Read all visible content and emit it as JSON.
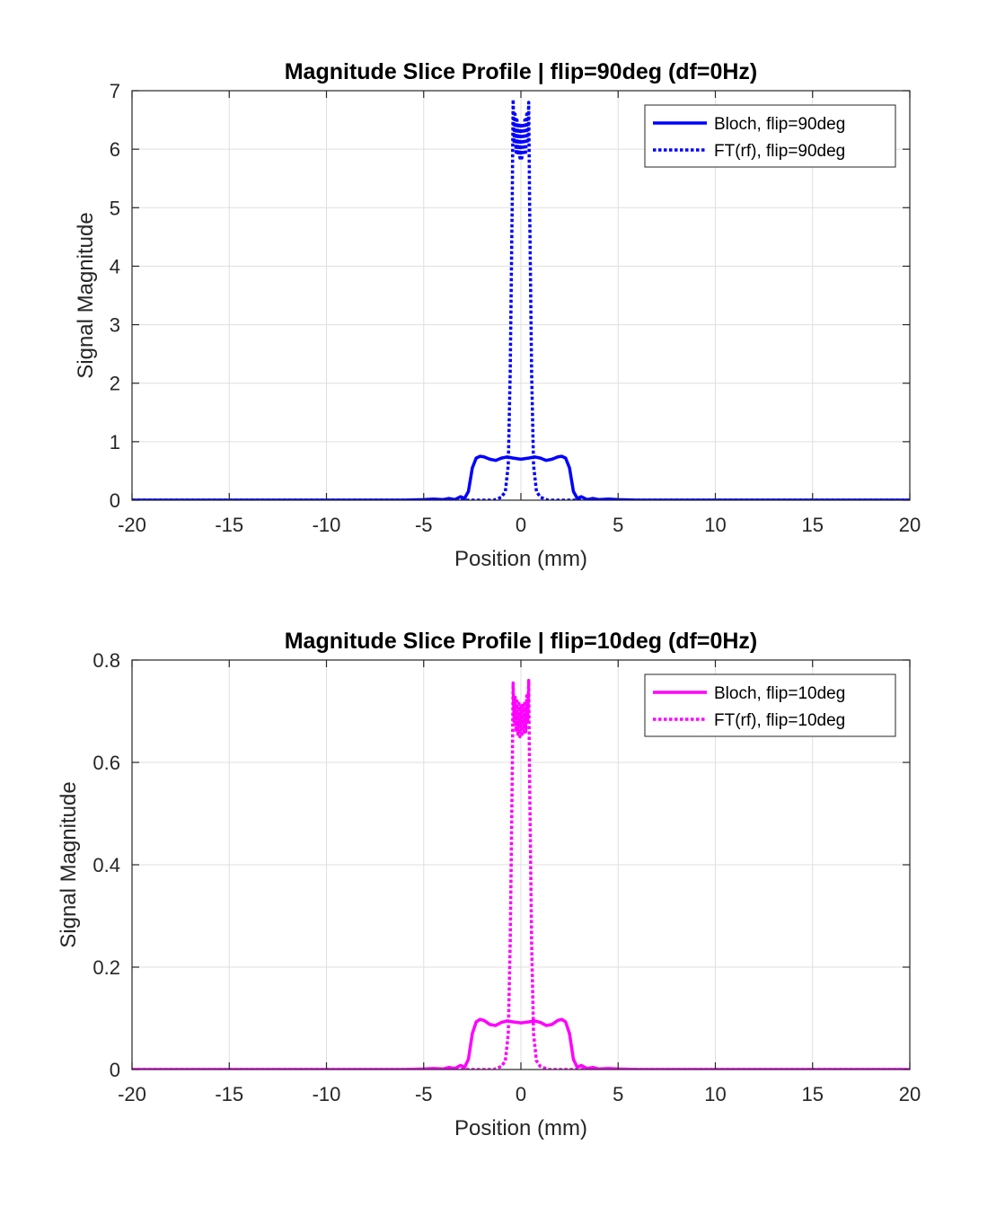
{
  "chart_data": [
    {
      "type": "line",
      "title": "Magnitude Slice Profile | flip=90deg (df=0Hz)",
      "xlabel": "Position (mm)",
      "ylabel": "Signal Magnitude",
      "xlim": [
        -20,
        20
      ],
      "ylim": [
        0,
        7
      ],
      "xticks": [
        -20,
        -15,
        -10,
        -5,
        0,
        5,
        10,
        15,
        20
      ],
      "yticks": [
        0,
        1,
        2,
        3,
        4,
        5,
        6,
        7
      ],
      "xtick_labels": [
        "-20",
        "-15",
        "-10",
        "-5",
        "0",
        "5",
        "10",
        "15",
        "20"
      ],
      "ytick_labels": [
        "0",
        "1",
        "2",
        "3",
        "4",
        "5",
        "6",
        "7"
      ],
      "grid": true,
      "legend_position": "top-right",
      "series": [
        {
          "name": "Bloch, flip=90deg",
          "style": "solid",
          "color": "#0000ff",
          "x": [
            -20,
            -6,
            -5,
            -4.5,
            -4,
            -3.7,
            -3.4,
            -3.1,
            -2.9,
            -2.7,
            -2.5,
            -2.3,
            -2.1,
            -1.9,
            -1.6,
            -1.3,
            -1.0,
            -0.7,
            -0.4,
            -0.2,
            0,
            0.2,
            0.4,
            0.7,
            1.0,
            1.3,
            1.6,
            1.9,
            2.1,
            2.3,
            2.5,
            2.7,
            2.9,
            3.1,
            3.4,
            3.7,
            4,
            4.5,
            5,
            6,
            20
          ],
          "y": [
            0.0,
            0.0,
            0.01,
            0.02,
            0.01,
            0.03,
            0.01,
            0.06,
            0.03,
            0.15,
            0.55,
            0.72,
            0.75,
            0.74,
            0.7,
            0.68,
            0.72,
            0.74,
            0.72,
            0.71,
            0.7,
            0.71,
            0.72,
            0.74,
            0.72,
            0.68,
            0.7,
            0.74,
            0.75,
            0.72,
            0.55,
            0.15,
            0.03,
            0.06,
            0.01,
            0.03,
            0.01,
            0.02,
            0.01,
            0.0,
            0.0
          ]
        },
        {
          "name": "FT(rf), flip=90deg",
          "style": "dotted",
          "color": "#0000ff",
          "x": [
            -20,
            -1.4,
            -1.0,
            -0.8,
            -0.65,
            -0.55,
            -0.45,
            -0.4,
            -0.35,
            -0.3,
            -0.25,
            -0.2,
            -0.15,
            -0.1,
            -0.05,
            0,
            0.05,
            0.1,
            0.15,
            0.2,
            0.25,
            0.3,
            0.35,
            0.4,
            0.45,
            0.55,
            0.65,
            0.8,
            1.0,
            1.4,
            20
          ],
          "y": [
            0.0,
            0.0,
            0.05,
            0.15,
            0.6,
            2.2,
            5.0,
            6.85,
            6.1,
            6.6,
            5.95,
            6.5,
            5.9,
            6.45,
            5.85,
            6.4,
            5.85,
            6.45,
            5.9,
            6.5,
            5.95,
            6.6,
            6.1,
            6.8,
            5.0,
            2.2,
            0.6,
            0.15,
            0.05,
            0.0,
            0.0
          ]
        }
      ]
    },
    {
      "type": "line",
      "title": "Magnitude Slice Profile | flip=10deg (df=0Hz)",
      "xlabel": "Position (mm)",
      "ylabel": "Signal Magnitude",
      "xlim": [
        -20,
        20
      ],
      "ylim": [
        0,
        0.8
      ],
      "xticks": [
        -20,
        -15,
        -10,
        -5,
        0,
        5,
        10,
        15,
        20
      ],
      "yticks": [
        0,
        0.2,
        0.4,
        0.6,
        0.8
      ],
      "xtick_labels": [
        "-20",
        "-15",
        "-10",
        "-5",
        "0",
        "5",
        "10",
        "15",
        "20"
      ],
      "ytick_labels": [
        "0",
        "0.2",
        "0.4",
        "0.6",
        "0.8"
      ],
      "grid": true,
      "legend_position": "top-right",
      "series": [
        {
          "name": "Bloch, flip=10deg",
          "style": "solid",
          "color": "#ff00ff",
          "x": [
            -20,
            -6,
            -5,
            -4.5,
            -4,
            -3.7,
            -3.4,
            -3.1,
            -2.9,
            -2.7,
            -2.5,
            -2.3,
            -2.1,
            -1.9,
            -1.6,
            -1.3,
            -1.0,
            -0.7,
            -0.4,
            -0.2,
            0,
            0.2,
            0.4,
            0.7,
            1.0,
            1.3,
            1.6,
            1.9,
            2.1,
            2.3,
            2.5,
            2.7,
            2.9,
            3.1,
            3.4,
            3.7,
            4,
            4.5,
            5,
            6,
            20
          ],
          "y": [
            0.0,
            0.0,
            0.001,
            0.002,
            0.001,
            0.004,
            0.002,
            0.008,
            0.004,
            0.02,
            0.07,
            0.093,
            0.098,
            0.096,
            0.088,
            0.086,
            0.092,
            0.095,
            0.093,
            0.092,
            0.091,
            0.092,
            0.093,
            0.095,
            0.092,
            0.086,
            0.088,
            0.096,
            0.098,
            0.093,
            0.07,
            0.02,
            0.004,
            0.008,
            0.002,
            0.004,
            0.001,
            0.002,
            0.001,
            0.0,
            0.0
          ]
        },
        {
          "name": "FT(rf), flip=10deg",
          "style": "dotted",
          "color": "#ff00ff",
          "x": [
            -20,
            -1.4,
            -1.0,
            -0.8,
            -0.65,
            -0.55,
            -0.45,
            -0.4,
            -0.35,
            -0.3,
            -0.25,
            -0.2,
            -0.15,
            -0.1,
            -0.05,
            0,
            0.05,
            0.1,
            0.15,
            0.2,
            0.25,
            0.3,
            0.35,
            0.4,
            0.45,
            0.55,
            0.65,
            0.8,
            1.0,
            1.4,
            20
          ],
          "y": [
            0.0,
            0.0,
            0.006,
            0.017,
            0.07,
            0.25,
            0.56,
            0.755,
            0.68,
            0.73,
            0.66,
            0.72,
            0.655,
            0.715,
            0.65,
            0.71,
            0.65,
            0.715,
            0.655,
            0.72,
            0.66,
            0.73,
            0.68,
            0.76,
            0.56,
            0.25,
            0.07,
            0.017,
            0.006,
            0.0,
            0.0
          ]
        }
      ]
    }
  ]
}
